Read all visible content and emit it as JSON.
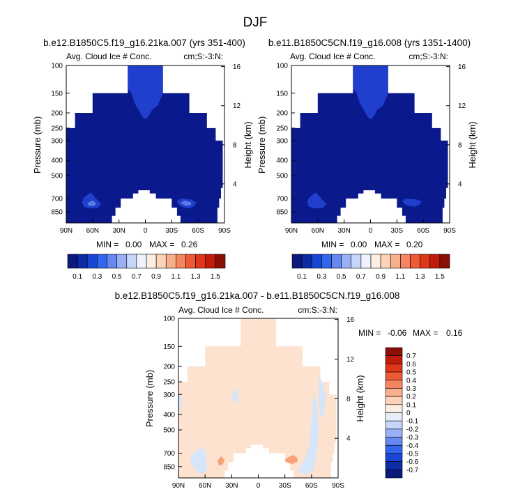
{
  "page_title": "DJF",
  "colors": {
    "background": "#ffffff",
    "frame": "#000000",
    "navy": "#0a1a8c",
    "blue_mid": "#1f3fcc",
    "blue_light": "#5a7ae6",
    "diff_peach": "#fde2cf",
    "diff_lightblue": "#d6e6fa",
    "diff_orange": "#f8a078"
  },
  "chart_data": [
    {
      "type": "heatmap",
      "id": "left",
      "title": "b.e12.B1850C5.f19_g16.21ka.007 (yrs 351-400)",
      "subtitle_left": "Avg. Cloud Ice # Conc.",
      "subtitle_right": "cm;S:-3:N:",
      "ylabel": "Pressure (mb)",
      "y2label": "Height (km)",
      "xticks": [
        "90N",
        "60N",
        "30N",
        "0",
        "30S",
        "60S",
        "90S"
      ],
      "yticks": [
        "100",
        "150",
        "200",
        "250",
        "300",
        "400",
        "500",
        "700",
        "850"
      ],
      "y2ticks": [
        "16",
        "12",
        "8",
        "4"
      ],
      "x_range": [
        90,
        -90
      ],
      "p_range": [
        100,
        1000
      ],
      "min_label": "MIN =",
      "min": "0.00",
      "max_label": "MAX =",
      "max": "0.26"
    },
    {
      "type": "heatmap",
      "id": "right",
      "title": "b.e11.B1850C5CN.f19_g16.008 (yrs 1351-1400)",
      "subtitle_left": "Avg. Cloud Ice # Conc.",
      "subtitle_right": "cm;S:-3:N:",
      "ylabel": "Pressure (mb)",
      "y2label": "Height (km)",
      "xticks": [
        "90N",
        "60N",
        "30N",
        "0",
        "30S",
        "60S",
        "90S"
      ],
      "yticks": [
        "100",
        "150",
        "200",
        "250",
        "300",
        "400",
        "500",
        "700",
        "850"
      ],
      "y2ticks": [
        "16",
        "12",
        "8",
        "4"
      ],
      "x_range": [
        90,
        -90
      ],
      "p_range": [
        100,
        1000
      ],
      "min_label": "MIN =",
      "min": "0.00",
      "max_label": "MAX =",
      "max": "0.20"
    },
    {
      "type": "heatmap",
      "id": "diff",
      "title": "b.e12.B1850C5.f19_g16.21ka.007 - b.e11.B1850C5CN.f19_g16.008",
      "subtitle_left": "Avg. Cloud Ice # Conc.",
      "subtitle_right": "cm:S:-3:N:",
      "ylabel": "Pressure (mb)",
      "y2label": "Height (km)",
      "xticks": [
        "90N",
        "60N",
        "30N",
        "0",
        "30S",
        "60S",
        "90S"
      ],
      "yticks": [
        "100",
        "150",
        "200",
        "250",
        "300",
        "400",
        "500",
        "700",
        "850"
      ],
      "y2ticks": [
        "16",
        "12",
        "8",
        "4"
      ],
      "x_range": [
        90,
        -90
      ],
      "p_range": [
        100,
        1000
      ],
      "min_label": "MIN =",
      "min": "-0.06",
      "max_label": "MAX =",
      "max": "0.16"
    }
  ],
  "colorbar_top": {
    "orientation": "horizontal",
    "colors": [
      "#0b1a7a",
      "#0c2ba5",
      "#1a46d6",
      "#3366ee",
      "#6688f0",
      "#99b0f4",
      "#c6d6fa",
      "#eef3fd",
      "#fdeee4",
      "#fcd2b8",
      "#f9ae8d",
      "#f58560",
      "#ee5a36",
      "#e0361a",
      "#c01c0c",
      "#8a0f06"
    ],
    "labels": [
      "0.1",
      "0.3",
      "0.5",
      "0.7",
      "0.9",
      "1.1",
      "1.3",
      "1.5"
    ]
  },
  "colorbar_diff": {
    "orientation": "vertical",
    "colors": [
      "#8a0f06",
      "#c01c0c",
      "#e0361a",
      "#ee5a36",
      "#f58560",
      "#f9ae8d",
      "#fcd2b8",
      "#fdeee4",
      "#e8eef8",
      "#c6d6fa",
      "#99b0f4",
      "#6688f0",
      "#3366ee",
      "#1a46d6",
      "#0c2ba5",
      "#0b1a7a"
    ],
    "labels": [
      "0.7",
      "0.6",
      "0.5",
      "0.4",
      "0.3",
      "0.2",
      "0.1",
      "0",
      "-0.1",
      "-0.2",
      "-0.3",
      "-0.4",
      "-0.5",
      "-0.6",
      "-0.7"
    ]
  }
}
